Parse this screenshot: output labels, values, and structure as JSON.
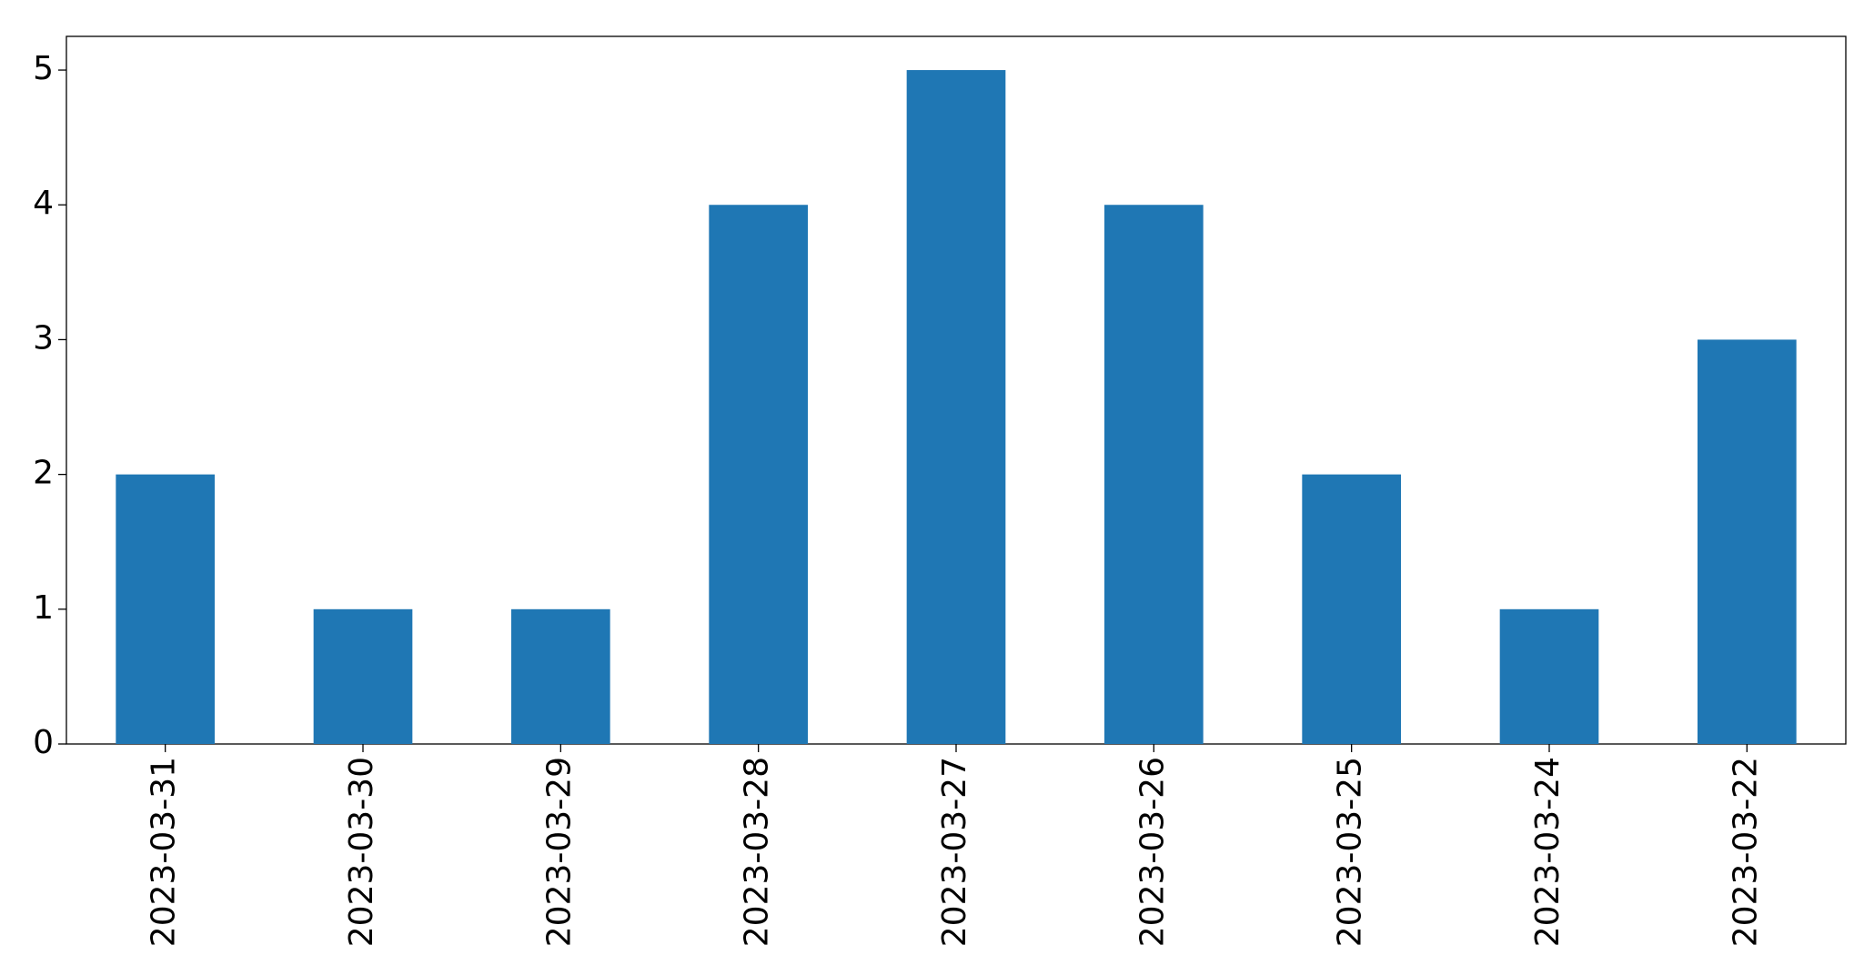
{
  "chart_data": {
    "type": "bar",
    "categories": [
      "2023-03-31",
      "2023-03-30",
      "2023-03-29",
      "2023-03-28",
      "2023-03-27",
      "2023-03-26",
      "2023-03-25",
      "2023-03-24",
      "2023-03-22"
    ],
    "values": [
      2,
      1,
      1,
      4,
      5,
      4,
      2,
      1,
      3
    ],
    "color": "#1f77b4",
    "ylim": [
      0,
      5.25
    ],
    "yticks": [
      0,
      1,
      2,
      3,
      4,
      5
    ],
    "grid": false
  }
}
